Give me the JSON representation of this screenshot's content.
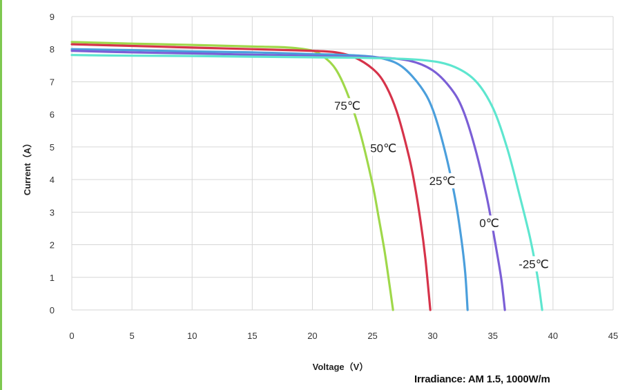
{
  "colors": {
    "frame_bar": "#7ec850",
    "grid": "#d6d6d6",
    "axis_text": "#333333"
  },
  "note": "Irradiance: AM 1.5, 1000W/m",
  "chart_data": {
    "type": "line",
    "title": "",
    "xlabel": "Voltage（V）",
    "ylabel": "Current（A）",
    "xlim": [
      0,
      45
    ],
    "ylim": [
      0,
      9
    ],
    "xticks": [
      0,
      5,
      10,
      15,
      20,
      25,
      30,
      35,
      40,
      45
    ],
    "yticks": [
      0,
      1,
      2,
      3,
      4,
      5,
      6,
      7,
      8,
      9
    ],
    "grid": true,
    "legend": "inline labels on curves",
    "series": [
      {
        "name": "75℃",
        "color": "#9fd84a",
        "label_at": [
          22.9,
          6.2
        ],
        "x": [
          0,
          5,
          10,
          15,
          18,
          20,
          21,
          22,
          23,
          24,
          25,
          25.5,
          26,
          26.4,
          26.7
        ],
        "y": [
          8.22,
          8.17,
          8.13,
          8.08,
          8.05,
          7.95,
          7.75,
          7.35,
          6.55,
          5.4,
          3.85,
          2.85,
          1.8,
          0.8,
          0
        ]
      },
      {
        "name": "50℃",
        "color": "#d6334a",
        "label_at": [
          25.9,
          4.9
        ],
        "x": [
          0,
          5,
          10,
          15,
          20,
          22,
          23.5,
          25,
          26,
          27,
          28,
          28.5,
          29,
          29.4,
          29.8
        ],
        "y": [
          8.15,
          8.1,
          8.05,
          8.0,
          7.95,
          7.9,
          7.75,
          7.4,
          6.95,
          6.1,
          4.75,
          3.85,
          2.7,
          1.55,
          0
        ]
      },
      {
        "name": "25℃",
        "color": "#4b9fdc",
        "label_at": [
          30.8,
          3.9
        ],
        "x": [
          0,
          5,
          10,
          15,
          20,
          24,
          26,
          27.5,
          29,
          30,
          31,
          31.8,
          32.3,
          32.7,
          32.9
        ],
        "y": [
          8.0,
          7.97,
          7.93,
          7.9,
          7.85,
          7.8,
          7.7,
          7.45,
          6.85,
          6.15,
          4.9,
          3.55,
          2.4,
          1.15,
          0
        ]
      },
      {
        "name": "0℃",
        "color": "#7b5fd6",
        "label_at": [
          34.7,
          2.6
        ],
        "x": [
          0,
          5,
          10,
          15,
          20,
          25,
          28,
          30,
          31.5,
          32.5,
          33.5,
          34.5,
          35.2,
          35.7,
          36.0
        ],
        "y": [
          7.95,
          7.9,
          7.87,
          7.83,
          7.79,
          7.75,
          7.65,
          7.35,
          6.8,
          6.15,
          5.0,
          3.45,
          2.05,
          0.95,
          0
        ]
      },
      {
        "name": "-25℃",
        "color": "#5ee6cf",
        "label_at": [
          38.4,
          1.35
        ],
        "x": [
          0,
          5,
          10,
          15,
          20,
          25,
          29,
          31.5,
          33.5,
          35,
          36.2,
          37.2,
          38.1,
          38.7,
          39.1
        ],
        "y": [
          7.82,
          7.8,
          7.79,
          7.77,
          7.75,
          7.73,
          7.67,
          7.5,
          7.05,
          6.2,
          4.95,
          3.55,
          2.2,
          1.05,
          0
        ]
      }
    ]
  }
}
